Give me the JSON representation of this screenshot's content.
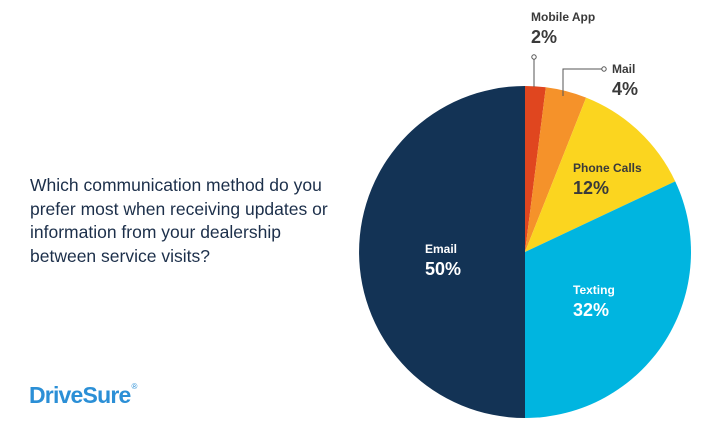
{
  "question": "Which communication method do you prefer most when receiving updates or information from your dealership between service visits?",
  "brand": {
    "name": "DriveSure",
    "mark": "®"
  },
  "chart_data": {
    "type": "pie",
    "title": "",
    "categories": [
      "Mobile App",
      "Mail",
      "Phone Calls",
      "Texting",
      "Email"
    ],
    "values": [
      2,
      4,
      12,
      32,
      50
    ],
    "value_labels": [
      "2%",
      "4%",
      "12%",
      "32%",
      "50%"
    ],
    "colors": [
      "#e0461f",
      "#f5922a",
      "#fbd51f",
      "#00b5e0",
      "#133355"
    ],
    "label_colors": [
      "#3a3a3a",
      "#3a3a3a",
      "#3a3a3a",
      "#ffffff",
      "#ffffff"
    ],
    "start_angle_deg": 0,
    "direction": "clockwise",
    "legend": "none"
  }
}
